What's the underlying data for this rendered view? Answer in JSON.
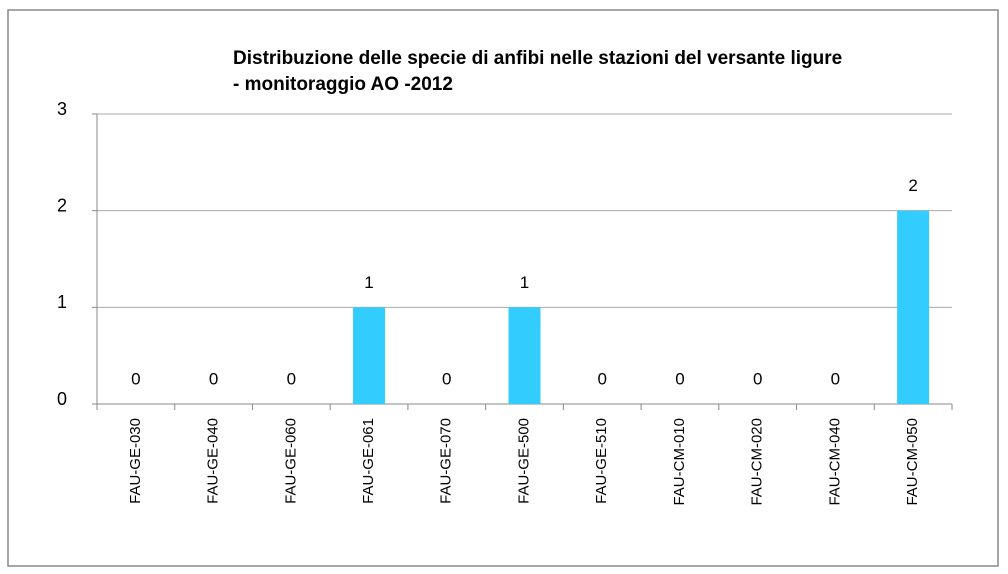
{
  "chart_data": {
    "type": "bar",
    "title": "Distribuzione delle specie di anfibi nelle stazioni del versante ligure - monitoraggio AO -2012",
    "categories": [
      "FAU-GE-030",
      "FAU-GE-040",
      "FAU-GE-060",
      "FAU-GE-061",
      "FAU-GE-070",
      "FAU-GE-500",
      "FAU-GE-510",
      "FAU-CM-010",
      "FAU-CM-020",
      "FAU-CM-040",
      "FAU-CM-050"
    ],
    "values": [
      0,
      0,
      0,
      1,
      0,
      1,
      0,
      0,
      0,
      0,
      2
    ],
    "color": "#33ccff",
    "ylim": [
      0,
      3
    ],
    "yticks": [
      0,
      1,
      2,
      3
    ],
    "grid": true
  }
}
